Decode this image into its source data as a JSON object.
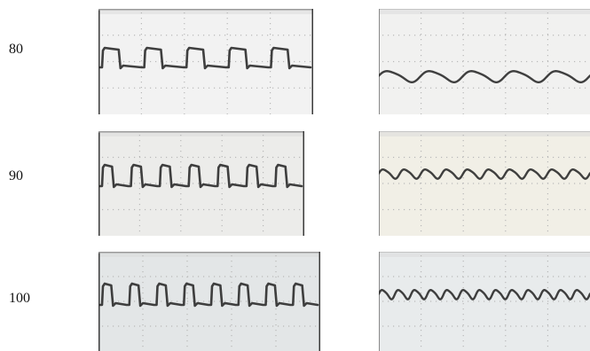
{
  "rows": [
    {
      "label": "80",
      "left": {
        "wave": "square",
        "cycles": 5
      },
      "right": {
        "wave": "sine",
        "cycles": 5
      }
    },
    {
      "label": "90",
      "left": {
        "wave": "square",
        "cycles": 7
      },
      "right": {
        "wave": "sine",
        "cycles": 10
      }
    },
    {
      "label": "100",
      "left": {
        "wave": "square",
        "cycles": 8
      },
      "right": {
        "wave": "sine",
        "cycles": 13
      }
    }
  ],
  "colors": {
    "trace": "#2b2b2b",
    "frame": "#3a3a3a",
    "grid_dot": "#b8b8b8",
    "screen_row1_left": "#f2f2f2",
    "screen_row1_right": "#f1f1f0",
    "screen_row2_left": "#ececea",
    "screen_row2_right": "#f1efe6",
    "screen_row3_left": "#e3e6e7",
    "screen_row3_right": "#e8ebec"
  }
}
